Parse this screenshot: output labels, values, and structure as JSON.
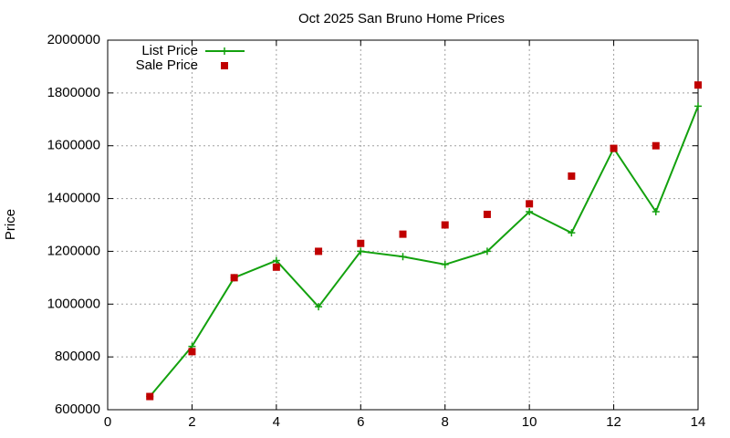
{
  "chart_data": {
    "type": "line",
    "title": "Oct 2025 San Bruno Home Prices",
    "y_label": "Price",
    "x": [
      1,
      2,
      3,
      4,
      5,
      6,
      7,
      8,
      9,
      10,
      11,
      12,
      13,
      14
    ],
    "series": [
      {
        "name": "List Price",
        "color": "#13a10e",
        "style": "linespoints",
        "marker": "plus",
        "values": [
          650000,
          840000,
          1100000,
          1165000,
          990000,
          1200000,
          1180000,
          1150000,
          1200000,
          1350000,
          1270000,
          1590000,
          1350000,
          1750000
        ]
      },
      {
        "name": "Sale Price",
        "color": "#c00000",
        "style": "points",
        "marker": "square",
        "values": [
          650000,
          820000,
          1100000,
          1140000,
          1200000,
          1230000,
          1265000,
          1300000,
          1340000,
          1380000,
          1485000,
          1590000,
          1600000,
          1830000
        ]
      }
    ],
    "xlim": [
      0,
      14
    ],
    "xticks": [
      0,
      2,
      4,
      6,
      8,
      10,
      12,
      14
    ],
    "ylim": [
      600000,
      2000000
    ],
    "yticks": [
      600000,
      800000,
      1000000,
      1200000,
      1400000,
      1600000,
      1800000,
      2000000
    ],
    "grid": true,
    "legend": "top-left"
  }
}
